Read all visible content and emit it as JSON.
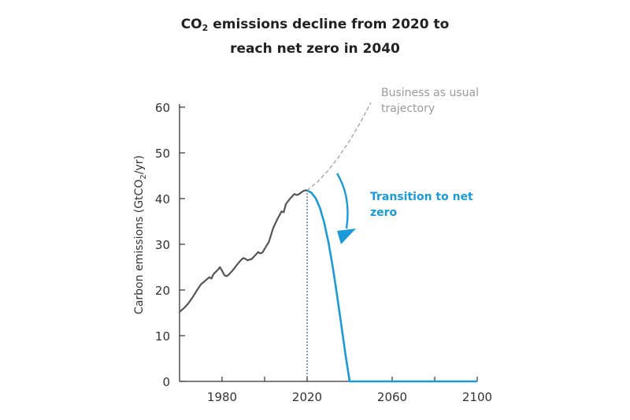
{
  "title": {
    "line1_pre": "CO",
    "line1_sub": "2",
    "line1_post": " emissions decline from 2020 to",
    "line2": "reach net zero in 2040"
  },
  "colors": {
    "historical": "#555555",
    "transition": "#1a9bd7",
    "business_as_usual": "#9a9a9a",
    "axis": "#333333"
  },
  "chart_data": {
    "type": "line",
    "title": "CO2 emissions decline from 2020 to reach net zero in 2040",
    "xlabel": "",
    "ylabel": "Carbon emissions (GtCO2/yr)",
    "ylabel_parts": {
      "pre": "Carbon emissions (GtCO",
      "sub": "2",
      "post": "/yr)"
    },
    "xlim": [
      1960,
      2100
    ],
    "ylim": [
      0,
      60
    ],
    "x_ticks": [
      1980,
      2020,
      2060,
      2100
    ],
    "y_ticks": [
      0,
      10,
      20,
      30,
      40,
      50,
      60
    ],
    "grid": false,
    "series": [
      {
        "key": "historical",
        "x": [
          1960,
          1962,
          1964,
          1966,
          1968,
          1970,
          1972,
          1974,
          1975,
          1976,
          1978,
          1979,
          1980,
          1981,
          1982,
          1983,
          1985,
          1987,
          1989,
          1990,
          1991,
          1992,
          1994,
          1996,
          1997,
          1998,
          1999,
          2000,
          2002,
          2004,
          2006,
          2008,
          2009,
          2010,
          2012,
          2014,
          2015,
          2016,
          2018,
          2019,
          2020
        ],
        "y": [
          15.2,
          16.0,
          17.0,
          18.3,
          19.8,
          21.2,
          22.0,
          22.8,
          22.5,
          23.5,
          24.4,
          25.0,
          24.2,
          23.3,
          23.0,
          23.3,
          24.3,
          25.5,
          26.6,
          27.0,
          26.8,
          26.5,
          26.8,
          27.8,
          28.3,
          28.0,
          28.2,
          29.0,
          30.5,
          33.5,
          35.5,
          37.2,
          37.0,
          38.8,
          40.0,
          41.0,
          40.8,
          40.9,
          41.6,
          41.8,
          41.8
        ]
      },
      {
        "key": "transition",
        "x": [
          2020,
          2022,
          2024,
          2026,
          2028,
          2030,
          2032,
          2034,
          2036,
          2038,
          2040,
          2060,
          2080,
          2100
        ],
        "y": [
          41.8,
          41.3,
          40.1,
          38.0,
          34.8,
          30.5,
          25.2,
          19.1,
          12.6,
          6.0,
          0,
          0,
          0,
          0
        ]
      },
      {
        "key": "business_as_usual",
        "x": [
          2020,
          2025,
          2030,
          2035,
          2040,
          2045,
          2050
        ],
        "y": [
          41.8,
          43.7,
          46.2,
          49.2,
          52.7,
          56.6,
          61.0
        ]
      }
    ],
    "annotations": [
      {
        "key": "bau_label",
        "lines": [
          "Business as usual",
          "trajectory"
        ]
      },
      {
        "key": "transition_label",
        "lines": [
          "Transition to net",
          "zero"
        ]
      }
    ],
    "vline_x": 2020
  }
}
